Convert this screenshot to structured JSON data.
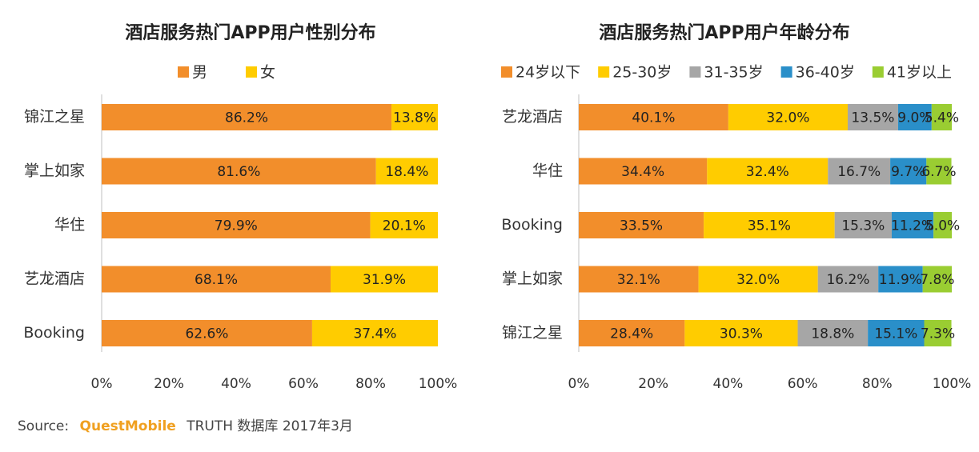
{
  "footer": {
    "source_label": "Source:",
    "brand": "QuestMobile",
    "rest": "TRUTH 数据库 2017年3月"
  },
  "chart_data": [
    {
      "type": "bar",
      "orientation": "horizontal",
      "stacked": true,
      "title": "酒店服务热门APP用户性别分布",
      "categories": [
        "锦江之星",
        "掌上如家",
        "华住",
        "艺龙酒店",
        "Booking"
      ],
      "series": [
        {
          "name": "男",
          "color": "#f28e2b",
          "values": [
            86.2,
            81.6,
            79.9,
            68.1,
            62.6
          ]
        },
        {
          "name": "女",
          "color": "#ffcc00",
          "values": [
            13.8,
            18.4,
            20.1,
            31.9,
            37.4
          ]
        }
      ],
      "value_format": "%",
      "xlim": [
        0,
        100
      ],
      "xticks": [
        "0%",
        "20%",
        "40%",
        "60%",
        "80%",
        "100%"
      ],
      "legend_position": "top"
    },
    {
      "type": "bar",
      "orientation": "horizontal",
      "stacked": true,
      "title": "酒店服务热门APP用户年龄分布",
      "categories": [
        "艺龙酒店",
        "华住",
        "Booking",
        "掌上如家",
        "锦江之星"
      ],
      "series": [
        {
          "name": "24岁以下",
          "color": "#f28e2b",
          "values": [
            40.1,
            34.4,
            33.5,
            32.1,
            28.4
          ]
        },
        {
          "name": "25-30岁",
          "color": "#ffcc00",
          "values": [
            32.0,
            32.4,
            35.1,
            32.0,
            30.3
          ]
        },
        {
          "name": "31-35岁",
          "color": "#a6a6a6",
          "values": [
            13.5,
            16.7,
            15.3,
            16.2,
            18.8
          ]
        },
        {
          "name": "36-40岁",
          "color": "#2a8fc9",
          "values": [
            9.0,
            9.7,
            11.2,
            11.9,
            15.1
          ]
        },
        {
          "name": "41岁以上",
          "color": "#9acd32",
          "values": [
            5.4,
            6.7,
            5.0,
            7.8,
            7.3
          ]
        }
      ],
      "value_format": "%",
      "xlim": [
        0,
        100
      ],
      "xticks": [
        "0%",
        "20%",
        "40%",
        "60%",
        "80%",
        "100%"
      ],
      "legend_position": "top"
    }
  ]
}
